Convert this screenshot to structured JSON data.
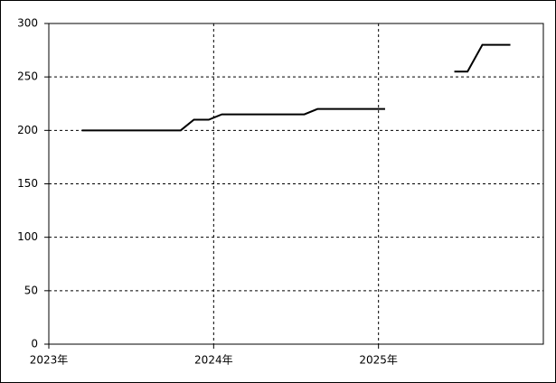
{
  "chart_data": {
    "type": "line",
    "x": [
      2023.2,
      2023.8,
      2023.88,
      2023.97,
      2024.05,
      2024.55,
      2024.63,
      2025.04,
      2025.25,
      2025.46,
      2025.54,
      2025.63,
      2025.8
    ],
    "series": [
      {
        "color": "#000000",
        "values": [
          200,
          200,
          210,
          210,
          215,
          215,
          220,
          220,
          null,
          255,
          255,
          280,
          280
        ]
      }
    ],
    "xlim": [
      2023,
      2026
    ],
    "xticks": [
      {
        "value": 2023,
        "label": "2023年"
      },
      {
        "value": 2024,
        "label": "2024年"
      },
      {
        "value": 2025,
        "label": "2025年"
      }
    ],
    "ylim": [
      0,
      300
    ],
    "yticks": [
      0,
      50,
      100,
      150,
      200,
      250,
      300
    ],
    "grid": true
  }
}
